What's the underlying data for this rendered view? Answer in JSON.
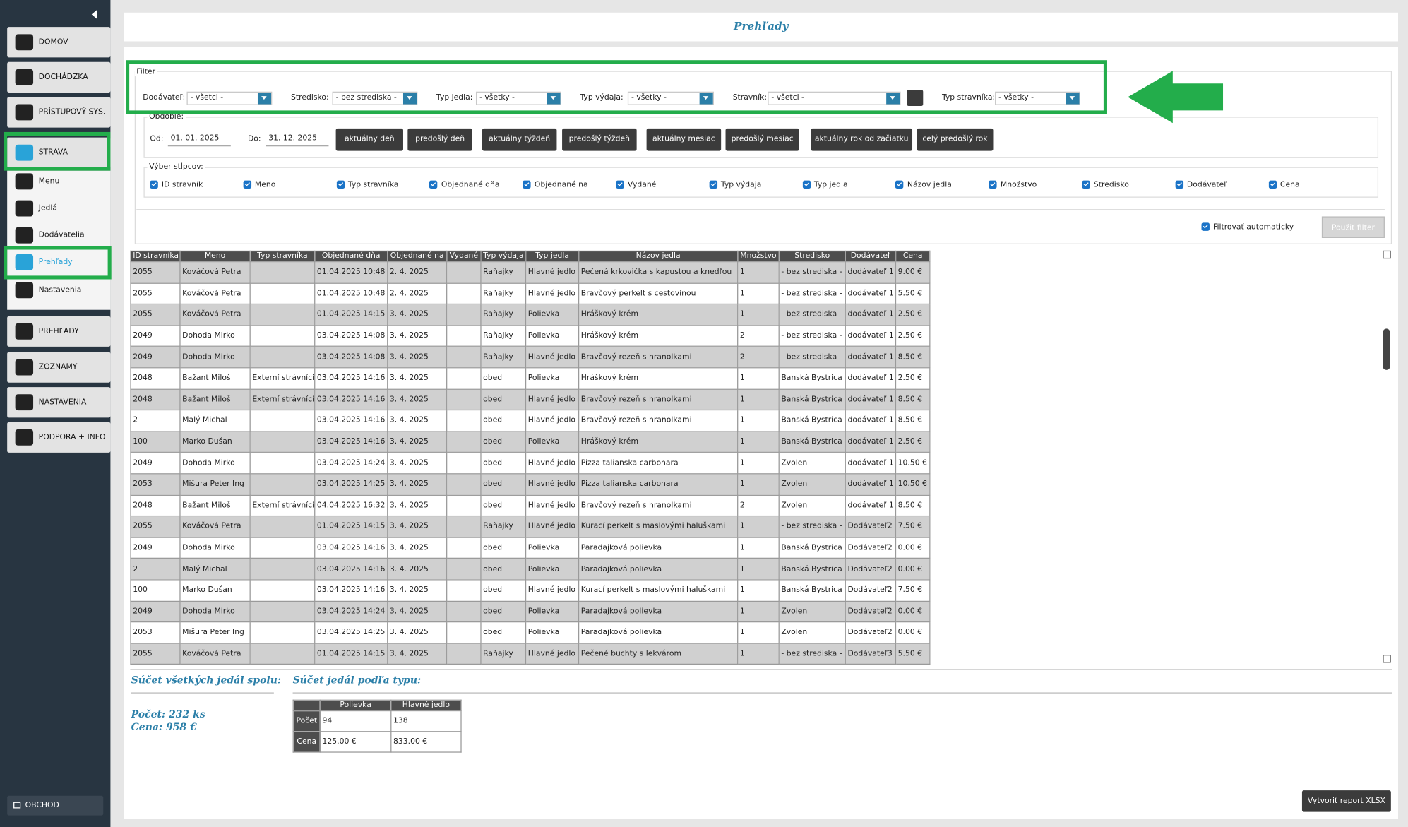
{
  "sidebar": {
    "main": [
      "DOMOV",
      "DOCHÁDZKA",
      "PRÍSTUPOVÝ SYS.",
      "STRAVA"
    ],
    "submenu": [
      "Menu",
      "Jedlá",
      "Dodávatelia",
      "Prehľady",
      "Nastavenia"
    ],
    "lower": [
      "PREHĽADY",
      "ZOZNAMY",
      "NASTAVENIA",
      "PODPORA + INFO"
    ],
    "shop": "OBCHOD"
  },
  "header": {
    "title": "Prehľady"
  },
  "filter": {
    "legend": "Filter",
    "fields": [
      {
        "label": "Dodávateľ:",
        "value": "- všetci -"
      },
      {
        "label": "Stredisko:",
        "value": "- bez strediska -"
      },
      {
        "label": "Typ jedla:",
        "value": "- všetky -"
      },
      {
        "label": "Typ výdaja:",
        "value": "- všetky -"
      },
      {
        "label": "Stravník:",
        "value": "- všetci -"
      },
      {
        "label": "Typ stravníka:",
        "value": "- všetky -"
      }
    ],
    "period": {
      "legend": "Obdobie:",
      "from_label": "Od:",
      "from": "01. 01. 2025",
      "to_label": "Do:",
      "to": "31. 12. 2025",
      "buttons": [
        "aktuálny deň",
        "predošlý deň",
        "aktuálny týždeň",
        "predošlý týždeň",
        "aktuálny mesiac",
        "predošlý mesiac",
        "aktuálny rok od začiatku",
        "celý predošlý rok"
      ]
    },
    "columns": {
      "legend": "Výber stĺpcov:",
      "items": [
        "ID stravník",
        "Meno",
        "Typ stravníka",
        "Objednané dňa",
        "Objednané na",
        "Vydané",
        "Typ výdaja",
        "Typ jedla",
        "Názov jedla",
        "Množstvo",
        "Stredisko",
        "Dodávateľ",
        "Cena"
      ]
    },
    "auto": "Filtrovať automaticky",
    "apply": "Použiť filter"
  },
  "table": {
    "headers": [
      "ID stravníka",
      "Meno",
      "Typ stravníka",
      "Objednané dňa",
      "Objednané na",
      "Vydané",
      "Typ výdaja",
      "Typ jedla",
      "Názov jedla",
      "Množstvo",
      "Stredisko",
      "Dodávateľ",
      "Cena"
    ],
    "rows": [
      [
        "2055",
        "Kováčová Petra",
        null,
        "01.04.2025 10:48",
        "2. 4. 2025",
        null,
        "Raňajky",
        "Hlavné jedlo",
        "Pečená krkovička s kapustou a knedľou",
        "1",
        "- bez strediska -",
        "dodávateľ 1",
        "9.00 €"
      ],
      [
        "2055",
        "Kováčová Petra",
        null,
        "01.04.2025 10:48",
        "2. 4. 2025",
        null,
        "Raňajky",
        "Hlavné jedlo",
        "Bravčový perkelt s cestovinou",
        "1",
        "- bez strediska -",
        "dodávateľ 1",
        "5.50 €"
      ],
      [
        "2055",
        "Kováčová Petra",
        null,
        "01.04.2025 14:15",
        "3. 4. 2025",
        null,
        "Raňajky",
        "Polievka",
        "Hráškový krém",
        "1",
        "- bez strediska -",
        "dodávateľ 1",
        "2.50 €"
      ],
      [
        "2049",
        "Dohoda Mirko",
        null,
        "03.04.2025 14:08",
        "3. 4. 2025",
        null,
        "Raňajky",
        "Polievka",
        "Hráškový krém",
        "2",
        "- bez strediska -",
        "dodávateľ 1",
        "2.50 €"
      ],
      [
        "2049",
        "Dohoda Mirko",
        null,
        "03.04.2025 14:08",
        "3. 4. 2025",
        null,
        "Raňajky",
        "Hlavné jedlo",
        "Bravčový rezeň s hranolkami",
        "2",
        "- bez strediska -",
        "dodávateľ 1",
        "8.50 €"
      ],
      [
        "2048",
        "Bažant Miloš",
        "Externí strávníci",
        "03.04.2025 14:16",
        "3. 4. 2025",
        null,
        "obed",
        "Polievka",
        "Hráškový krém",
        "1",
        "Banská Bystrica",
        "dodávateľ 1",
        "2.50 €"
      ],
      [
        "2048",
        "Bažant Miloš",
        "Externí strávníci",
        "03.04.2025 14:16",
        "3. 4. 2025",
        null,
        "obed",
        "Hlavné jedlo",
        "Bravčový rezeň s hranolkami",
        "1",
        "Banská Bystrica",
        "dodávateľ 1",
        "8.50 €"
      ],
      [
        "2",
        "Malý Michal",
        null,
        "03.04.2025 14:16",
        "3. 4. 2025",
        null,
        "obed",
        "Hlavné jedlo",
        "Bravčový rezeň s hranolkami",
        "1",
        "Banská Bystrica",
        "dodávateľ 1",
        "8.50 €"
      ],
      [
        "100",
        "Marko Dušan",
        null,
        "03.04.2025 14:16",
        "3. 4. 2025",
        null,
        "obed",
        "Polievka",
        "Hráškový krém",
        "1",
        "Banská Bystrica",
        "dodávateľ 1",
        "2.50 €"
      ],
      [
        "2049",
        "Dohoda Mirko",
        null,
        "03.04.2025 14:24",
        "3. 4. 2025",
        null,
        "obed",
        "Hlavné jedlo",
        "Pizza talianska carbonara",
        "1",
        "Zvolen",
        "dodávateľ 1",
        "10.50 €"
      ],
      [
        "2053",
        "Mišura Peter Ing",
        null,
        "03.04.2025 14:25",
        "3. 4. 2025",
        null,
        "obed",
        "Hlavné jedlo",
        "Pizza talianska carbonara",
        "1",
        "Zvolen",
        "dodávateľ 1",
        "10.50 €"
      ],
      [
        "2048",
        "Bažant Miloš",
        "Externí strávníci",
        "04.04.2025 16:32",
        "3. 4. 2025",
        null,
        "obed",
        "Hlavné jedlo",
        "Bravčový rezeň s hranolkami",
        "2",
        "Zvolen",
        "dodávateľ 1",
        "8.50 €"
      ],
      [
        "2055",
        "Kováčová Petra",
        null,
        "01.04.2025 14:15",
        "3. 4. 2025",
        null,
        "Raňajky",
        "Hlavné jedlo",
        "Kurací perkelt s maslovými haluškami",
        "1",
        "- bez strediska -",
        "Dodávateľ2",
        "7.50 €"
      ],
      [
        "2049",
        "Dohoda Mirko",
        null,
        "03.04.2025 14:16",
        "3. 4. 2025",
        null,
        "obed",
        "Polievka",
        "Paradajková polievka",
        "1",
        "Banská Bystrica",
        "Dodávateľ2",
        "0.00 €"
      ],
      [
        "2",
        "Malý Michal",
        null,
        "03.04.2025 14:16",
        "3. 4. 2025",
        null,
        "obed",
        "Polievka",
        "Paradajková polievka",
        "1",
        "Banská Bystrica",
        "Dodávateľ2",
        "0.00 €"
      ],
      [
        "100",
        "Marko Dušan",
        null,
        "03.04.2025 14:16",
        "3. 4. 2025",
        null,
        "obed",
        "Hlavné jedlo",
        "Kurací perkelt s maslovými haluškami",
        "1",
        "Banská Bystrica",
        "Dodávateľ2",
        "7.50 €"
      ],
      [
        "2049",
        "Dohoda Mirko",
        null,
        "03.04.2025 14:24",
        "3. 4. 2025",
        null,
        "obed",
        "Polievka",
        "Paradajková polievka",
        "1",
        "Zvolen",
        "Dodávateľ2",
        "0.00 €"
      ],
      [
        "2053",
        "Mišura Peter Ing",
        null,
        "03.04.2025 14:25",
        "3. 4. 2025",
        null,
        "obed",
        "Polievka",
        "Paradajková polievka",
        "1",
        "Zvolen",
        "Dodávateľ2",
        "0.00 €"
      ],
      [
        "2055",
        "Kováčová Petra",
        null,
        "01.04.2025 14:15",
        "3. 4. 2025",
        null,
        "Raňajky",
        "Hlavné jedlo",
        "Pečené buchty s lekvárom",
        "1",
        "- bez strediska -",
        "Dodávateľ3",
        "5.50 €"
      ]
    ]
  },
  "summary": {
    "total_title": "Súčet všetkých jedál spolu:",
    "count": "Počet: 232 ks",
    "price": "Cena: 958 €",
    "by_type_title": "Súčet jedál podľa typu:",
    "type_table": {
      "headers": [
        "Polievka",
        "Hlavné jedlo"
      ],
      "rows": [
        {
          "label": "Počet",
          "values": [
            "94",
            "138"
          ]
        },
        {
          "label": "Cena",
          "values": [
            "125.00 €",
            "833.00 €"
          ]
        }
      ]
    }
  },
  "export": "Vytvoriť report XLSX"
}
